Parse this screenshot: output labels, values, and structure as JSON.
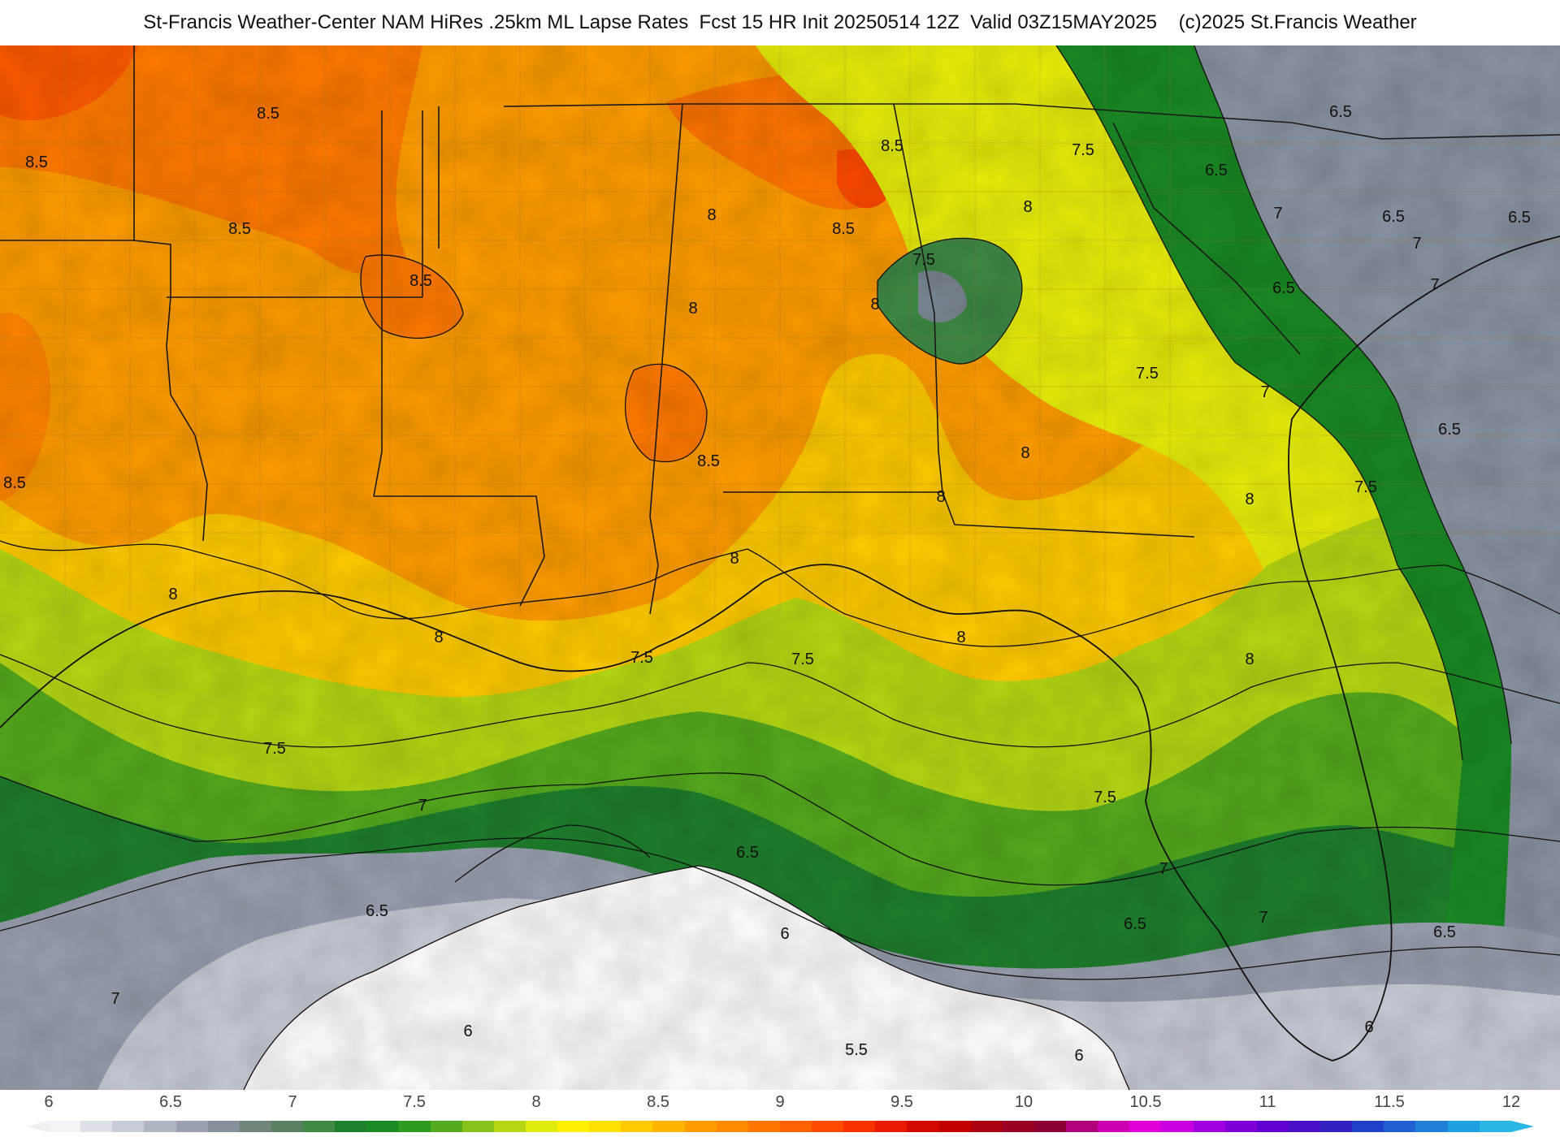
{
  "header": {
    "title": "St-Francis Weather-Center NAM HiRes .25km ML Lapse Rates  Fcst 15 HR Init 20250514 12Z  Valid 03Z15MAY2025    (c)2025 St.Francis Weather"
  },
  "map": {
    "product": "ML Lapse Rates",
    "contour_labels": [
      {
        "text": "8.5"
      },
      {
        "text": "8.5"
      },
      {
        "text": "8.5"
      },
      {
        "text": "8.5"
      },
      {
        "text": "8.5"
      },
      {
        "text": "8.5"
      },
      {
        "text": "8.5"
      },
      {
        "text": "8.5"
      },
      {
        "text": "8"
      },
      {
        "text": "8"
      },
      {
        "text": "8"
      },
      {
        "text": "8"
      },
      {
        "text": "8"
      },
      {
        "text": "8"
      },
      {
        "text": "8"
      },
      {
        "text": "8"
      },
      {
        "text": "8"
      },
      {
        "text": "8"
      },
      {
        "text": "8"
      },
      {
        "text": "8"
      },
      {
        "text": "7.5"
      },
      {
        "text": "7.5"
      },
      {
        "text": "7.5"
      },
      {
        "text": "7.5"
      },
      {
        "text": "7.5"
      },
      {
        "text": "7.5"
      },
      {
        "text": "7.5"
      },
      {
        "text": "7.5"
      },
      {
        "text": "7"
      },
      {
        "text": "7"
      },
      {
        "text": "7"
      },
      {
        "text": "7"
      },
      {
        "text": "7"
      },
      {
        "text": "7"
      },
      {
        "text": "7"
      },
      {
        "text": "7"
      },
      {
        "text": "6.5"
      },
      {
        "text": "6.5"
      },
      {
        "text": "6.5"
      },
      {
        "text": "6.5"
      },
      {
        "text": "6.5"
      },
      {
        "text": "6.5"
      },
      {
        "text": "6.5"
      },
      {
        "text": "6.5"
      },
      {
        "text": "6.5"
      },
      {
        "text": "6.5"
      },
      {
        "text": "6"
      },
      {
        "text": "6"
      },
      {
        "text": "6"
      },
      {
        "text": "6"
      },
      {
        "text": "5.5"
      }
    ]
  },
  "colorbar": {
    "ticks": [
      "6",
      "6.5",
      "7",
      "7.5",
      "8",
      "8.5",
      "9",
      "9.5",
      "10",
      "10.5",
      "11",
      "11.5",
      "12"
    ],
    "swatches": [
      "#f2f3f6",
      "#dde0e7",
      "#c8ccd6",
      "#b1b6c3",
      "#9aa0af",
      "#85909b",
      "#6f8577",
      "#5a7f63",
      "#3f8b45",
      "#1e7f2c",
      "#1a8a24",
      "#2f9a20",
      "#55ab1e",
      "#86c21a",
      "#b6d814",
      "#e2ec0c",
      "#fff200",
      "#ffe000",
      "#ffcb00",
      "#ffb400",
      "#ff9d00",
      "#ff8a00",
      "#ff7700",
      "#ff6200",
      "#ff4a00",
      "#f73200",
      "#e81a00",
      "#d40a00",
      "#c20000",
      "#ac0010",
      "#9a0024",
      "#8c0036",
      "#b0007a",
      "#cc00b0",
      "#e000d8",
      "#c800e0",
      "#a000e0",
      "#8000d8",
      "#6000d0",
      "#4a10c8",
      "#3020c0",
      "#2040c8",
      "#2060d0",
      "#2080d8",
      "#20a0e0",
      "#29b6e6"
    ]
  }
}
